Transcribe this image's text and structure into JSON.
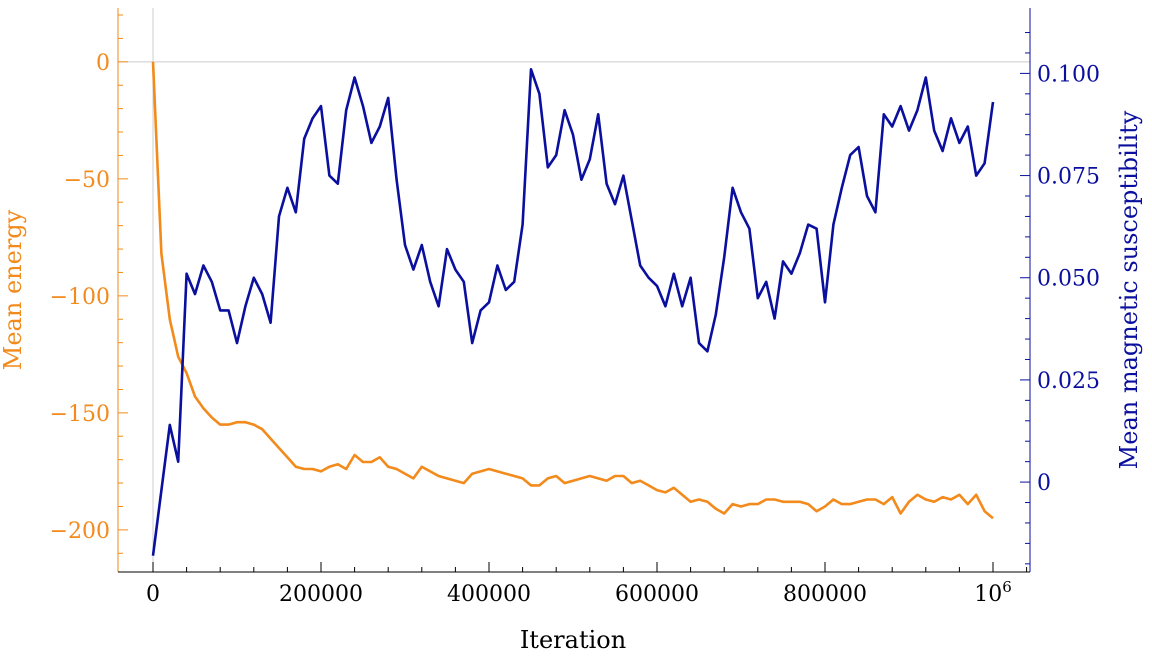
{
  "chart_data": {
    "type": "line",
    "xlabel": "Iteration",
    "ylabel_left": "Mean energy",
    "ylabel_right": "Mean magnetic susceptibility",
    "x_range": [
      0,
      1000000
    ],
    "y_left_range": [
      -218,
      23
    ],
    "y_right_range": [
      -0.022,
      0.116
    ],
    "x_ticks": [
      {
        "value": 0,
        "label": "0"
      },
      {
        "value": 200000,
        "label": "200000"
      },
      {
        "value": 400000,
        "label": "400000"
      },
      {
        "value": 600000,
        "label": "600000"
      },
      {
        "value": 800000,
        "label": "800000"
      },
      {
        "value": 1000000,
        "label": "10",
        "sup": "6"
      }
    ],
    "y_left_ticks": [
      {
        "value": 0,
        "label": "0"
      },
      {
        "value": -50,
        "label": "−50"
      },
      {
        "value": -100,
        "label": "−100"
      },
      {
        "value": -150,
        "label": "−150"
      },
      {
        "value": -200,
        "label": "−200"
      }
    ],
    "y_right_ticks": [
      {
        "value": 0.1,
        "label": "0.100"
      },
      {
        "value": 0.075,
        "label": "0.075"
      },
      {
        "value": 0.05,
        "label": "0.050"
      },
      {
        "value": 0.025,
        "label": "0.025"
      },
      {
        "value": 0,
        "label": "0"
      }
    ],
    "colors": {
      "energy": "#f28a1c",
      "susceptibility": "#0a0f9e",
      "gridline": "#cccccc"
    },
    "x": [
      0,
      10000,
      20000,
      30000,
      40000,
      50000,
      60000,
      70000,
      80000,
      90000,
      100000,
      110000,
      120000,
      130000,
      140000,
      150000,
      160000,
      170000,
      180000,
      190000,
      200000,
      210000,
      220000,
      230000,
      240000,
      250000,
      260000,
      270000,
      280000,
      290000,
      300000,
      310000,
      320000,
      330000,
      340000,
      350000,
      360000,
      370000,
      380000,
      390000,
      400000,
      410000,
      420000,
      430000,
      440000,
      450000,
      460000,
      470000,
      480000,
      490000,
      500000,
      510000,
      520000,
      530000,
      540000,
      550000,
      560000,
      570000,
      580000,
      590000,
      600000,
      610000,
      620000,
      630000,
      640000,
      650000,
      660000,
      670000,
      680000,
      690000,
      700000,
      710000,
      720000,
      730000,
      740000,
      750000,
      760000,
      770000,
      780000,
      790000,
      800000,
      810000,
      820000,
      830000,
      840000,
      850000,
      860000,
      870000,
      880000,
      890000,
      900000,
      910000,
      920000,
      930000,
      940000,
      950000,
      960000,
      970000,
      980000,
      990000,
      1000000
    ],
    "series": [
      {
        "name": "Mean energy",
        "axis": "left",
        "values": [
          0,
          -82,
          -110,
          -126,
          -133,
          -143,
          -148,
          -152,
          -155,
          -155,
          -154,
          -154,
          -155,
          -157,
          -161,
          -165,
          -169,
          -173,
          -174,
          -174,
          -175,
          -173,
          -172,
          -174,
          -168,
          -171,
          -171,
          -169,
          -173,
          -174,
          -176,
          -178,
          -173,
          -175,
          -177,
          -178,
          -179,
          -180,
          -176,
          -175,
          -174,
          -175,
          -176,
          -177,
          -178,
          -181,
          -181,
          -178,
          -177,
          -180,
          -179,
          -178,
          -177,
          -178,
          -179,
          -177,
          -177,
          -180,
          -179,
          -181,
          -183,
          -184,
          -182,
          -185,
          -188,
          -187,
          -188,
          -191,
          -193,
          -189,
          -190,
          -189,
          -189,
          -187,
          -187,
          -188,
          -188,
          -188,
          -189,
          -192,
          -190,
          -187,
          -189,
          -189,
          -188,
          -187,
          -187,
          -189,
          -186,
          -193,
          -188,
          -185,
          -187,
          -188,
          -186,
          -187,
          -185,
          -189,
          -185,
          -192,
          -195
        ]
      },
      {
        "name": "Mean magnetic susceptibility",
        "axis": "right",
        "values": [
          -0.018,
          -0.002,
          0.014,
          0.005,
          0.051,
          0.046,
          0.053,
          0.049,
          0.042,
          0.042,
          0.034,
          0.043,
          0.05,
          0.046,
          0.039,
          0.065,
          0.072,
          0.066,
          0.084,
          0.089,
          0.092,
          0.075,
          0.073,
          0.091,
          0.099,
          0.092,
          0.083,
          0.087,
          0.094,
          0.074,
          0.058,
          0.052,
          0.058,
          0.049,
          0.043,
          0.057,
          0.052,
          0.049,
          0.034,
          0.042,
          0.044,
          0.053,
          0.047,
          0.049,
          0.063,
          0.101,
          0.095,
          0.077,
          0.08,
          0.091,
          0.085,
          0.074,
          0.079,
          0.09,
          0.073,
          0.068,
          0.075,
          0.064,
          0.053,
          0.05,
          0.048,
          0.043,
          0.051,
          0.043,
          0.05,
          0.034,
          0.032,
          0.041,
          0.055,
          0.072,
          0.066,
          0.062,
          0.045,
          0.049,
          0.04,
          0.054,
          0.051,
          0.056,
          0.063,
          0.062,
          0.044,
          0.063,
          0.072,
          0.08,
          0.082,
          0.07,
          0.066,
          0.09,
          0.087,
          0.092,
          0.086,
          0.091,
          0.099,
          0.086,
          0.081,
          0.089,
          0.083,
          0.087,
          0.075,
          0.078,
          0.093
        ]
      }
    ]
  }
}
